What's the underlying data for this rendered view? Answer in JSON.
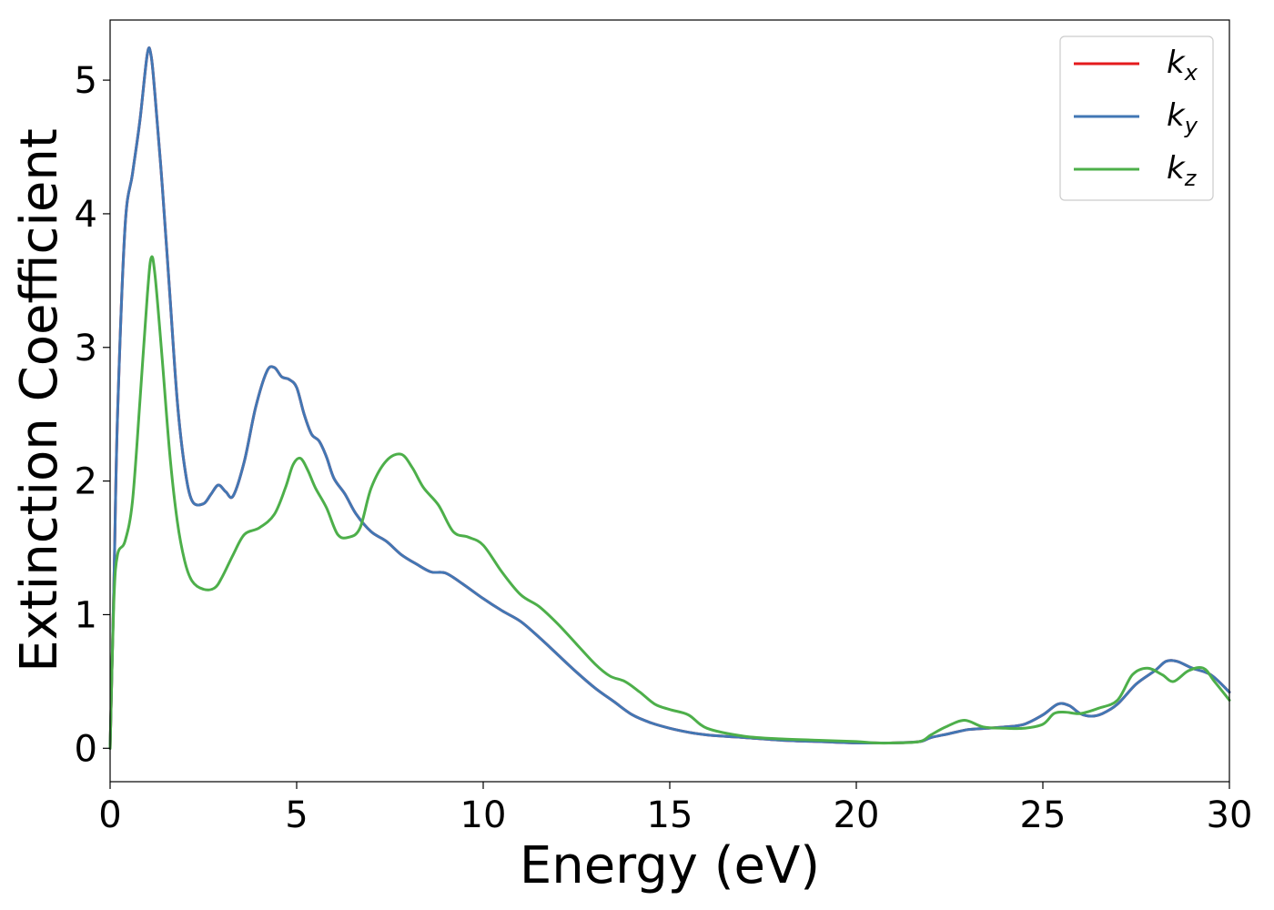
{
  "chart_data": {
    "type": "line",
    "xlabel": "Energy (eV)",
    "ylabel": "Extinction Coefficient",
    "xlim": [
      0,
      30
    ],
    "ylim": [
      -0.25,
      5.45
    ],
    "xticks": [
      0,
      5,
      10,
      15,
      20,
      25,
      30
    ],
    "yticks": [
      0,
      1,
      2,
      3,
      4,
      5
    ],
    "grid": false,
    "legend_position": "top-right",
    "series": [
      {
        "name": "kx",
        "label_main": "k",
        "label_sub": "x",
        "color": "#e41a1c",
        "x": [
          0.0,
          0.1,
          0.2,
          0.4,
          0.6,
          0.8,
          1.0,
          1.1,
          1.2,
          1.4,
          1.6,
          1.8,
          2.0,
          2.2,
          2.5,
          2.7,
          2.9,
          3.1,
          3.3,
          3.6,
          3.9,
          4.2,
          4.4,
          4.6,
          4.8,
          5.0,
          5.2,
          5.4,
          5.6,
          5.8,
          6.0,
          6.3,
          6.6,
          7.0,
          7.4,
          7.8,
          8.2,
          8.6,
          9.0,
          9.5,
          10.0,
          10.5,
          11.0,
          11.5,
          12.0,
          12.5,
          13.0,
          13.5,
          14.0,
          14.5,
          15.0,
          15.5,
          16.0,
          17.0,
          18.0,
          19.0,
          20.0,
          20.5,
          21.0,
          21.7,
          22.0,
          22.5,
          23.0,
          23.5,
          24.0,
          24.5,
          25.0,
          25.4,
          25.7,
          26.0,
          26.3,
          26.6,
          27.0,
          27.5,
          28.0,
          28.3,
          28.6,
          29.0,
          29.5,
          30.0
        ],
        "values": [
          0.0,
          1.2,
          2.5,
          3.9,
          4.3,
          4.7,
          5.2,
          5.18,
          4.9,
          4.2,
          3.4,
          2.6,
          2.1,
          1.85,
          1.83,
          1.9,
          1.97,
          1.92,
          1.89,
          2.15,
          2.55,
          2.82,
          2.85,
          2.78,
          2.76,
          2.7,
          2.5,
          2.35,
          2.3,
          2.18,
          2.02,
          1.9,
          1.75,
          1.62,
          1.55,
          1.45,
          1.38,
          1.32,
          1.31,
          1.22,
          1.12,
          1.03,
          0.95,
          0.83,
          0.7,
          0.57,
          0.45,
          0.35,
          0.25,
          0.19,
          0.15,
          0.12,
          0.1,
          0.08,
          0.06,
          0.05,
          0.04,
          0.04,
          0.04,
          0.05,
          0.08,
          0.11,
          0.14,
          0.15,
          0.16,
          0.18,
          0.25,
          0.33,
          0.32,
          0.26,
          0.24,
          0.26,
          0.33,
          0.48,
          0.58,
          0.65,
          0.65,
          0.6,
          0.55,
          0.42
        ]
      },
      {
        "name": "ky",
        "label_main": "k",
        "label_sub": "y",
        "color": "#4277b4",
        "x": [
          0.0,
          0.1,
          0.2,
          0.4,
          0.6,
          0.8,
          1.0,
          1.1,
          1.2,
          1.4,
          1.6,
          1.8,
          2.0,
          2.2,
          2.5,
          2.7,
          2.9,
          3.1,
          3.3,
          3.6,
          3.9,
          4.2,
          4.4,
          4.6,
          4.8,
          5.0,
          5.2,
          5.4,
          5.6,
          5.8,
          6.0,
          6.3,
          6.6,
          7.0,
          7.4,
          7.8,
          8.2,
          8.6,
          9.0,
          9.5,
          10.0,
          10.5,
          11.0,
          11.5,
          12.0,
          12.5,
          13.0,
          13.5,
          14.0,
          14.5,
          15.0,
          15.5,
          16.0,
          17.0,
          18.0,
          19.0,
          20.0,
          20.5,
          21.0,
          21.7,
          22.0,
          22.5,
          23.0,
          23.5,
          24.0,
          24.5,
          25.0,
          25.4,
          25.7,
          26.0,
          26.3,
          26.6,
          27.0,
          27.5,
          28.0,
          28.3,
          28.6,
          29.0,
          29.5,
          30.0
        ],
        "values": [
          0.0,
          1.2,
          2.5,
          3.9,
          4.3,
          4.7,
          5.2,
          5.18,
          4.9,
          4.2,
          3.4,
          2.6,
          2.1,
          1.85,
          1.83,
          1.9,
          1.97,
          1.92,
          1.89,
          2.15,
          2.55,
          2.82,
          2.85,
          2.78,
          2.76,
          2.7,
          2.5,
          2.35,
          2.3,
          2.18,
          2.02,
          1.9,
          1.75,
          1.62,
          1.55,
          1.45,
          1.38,
          1.32,
          1.31,
          1.22,
          1.12,
          1.03,
          0.95,
          0.83,
          0.7,
          0.57,
          0.45,
          0.35,
          0.25,
          0.19,
          0.15,
          0.12,
          0.1,
          0.08,
          0.06,
          0.05,
          0.04,
          0.04,
          0.04,
          0.05,
          0.08,
          0.11,
          0.14,
          0.15,
          0.16,
          0.18,
          0.25,
          0.33,
          0.32,
          0.26,
          0.24,
          0.26,
          0.33,
          0.48,
          0.58,
          0.65,
          0.65,
          0.6,
          0.55,
          0.42
        ]
      },
      {
        "name": "kz",
        "label_main": "k",
        "label_sub": "z",
        "color": "#4daf4a",
        "x": [
          0.0,
          0.1,
          0.2,
          0.4,
          0.6,
          0.8,
          1.0,
          1.1,
          1.2,
          1.4,
          1.6,
          1.8,
          2.0,
          2.2,
          2.5,
          2.8,
          3.0,
          3.3,
          3.6,
          4.0,
          4.4,
          4.7,
          4.9,
          5.1,
          5.3,
          5.5,
          5.8,
          6.1,
          6.4,
          6.7,
          7.0,
          7.4,
          7.8,
          8.1,
          8.4,
          8.8,
          9.2,
          9.6,
          10.0,
          10.5,
          11.0,
          11.5,
          12.0,
          12.5,
          13.0,
          13.4,
          13.8,
          14.2,
          14.6,
          15.0,
          15.5,
          16.0,
          17.0,
          18.0,
          19.0,
          20.0,
          20.5,
          21.0,
          21.7,
          22.0,
          22.4,
          22.9,
          23.4,
          24.0,
          24.5,
          25.0,
          25.3,
          25.6,
          26.0,
          26.5,
          27.0,
          27.4,
          27.8,
          28.2,
          28.5,
          28.9,
          29.3,
          29.6,
          30.0
        ],
        "values": [
          0.0,
          1.1,
          1.45,
          1.55,
          1.85,
          2.6,
          3.4,
          3.67,
          3.55,
          2.9,
          2.2,
          1.7,
          1.4,
          1.25,
          1.19,
          1.2,
          1.28,
          1.45,
          1.6,
          1.65,
          1.75,
          1.95,
          2.12,
          2.17,
          2.08,
          1.95,
          1.8,
          1.6,
          1.58,
          1.65,
          1.95,
          2.15,
          2.2,
          2.1,
          1.95,
          1.82,
          1.62,
          1.58,
          1.52,
          1.32,
          1.15,
          1.06,
          0.93,
          0.78,
          0.63,
          0.54,
          0.5,
          0.42,
          0.33,
          0.29,
          0.25,
          0.15,
          0.09,
          0.07,
          0.06,
          0.05,
          0.04,
          0.04,
          0.05,
          0.1,
          0.16,
          0.21,
          0.16,
          0.15,
          0.15,
          0.18,
          0.26,
          0.27,
          0.26,
          0.3,
          0.36,
          0.55,
          0.6,
          0.55,
          0.5,
          0.58,
          0.6,
          0.5,
          0.36
        ]
      }
    ]
  }
}
